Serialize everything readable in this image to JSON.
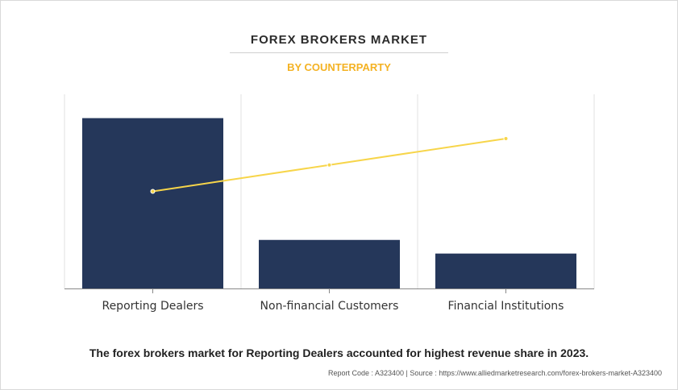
{
  "chart_data": {
    "type": "bar",
    "title": "FOREX BROKERS MARKET",
    "subtitle": "BY COUNTERPARTY",
    "categories": [
      "Reporting Dealers",
      "Non-financial Customers",
      "Financial Institutions"
    ],
    "series": [
      {
        "type": "bar",
        "values": [
          100,
          28.5,
          20.5
        ]
      },
      {
        "type": "line",
        "values": [
          57,
          72.5,
          88
        ]
      }
    ],
    "ylim": [
      0,
      114
    ],
    "grid": "vertical",
    "legend": "none",
    "colors": {
      "bar": "#25375a",
      "line": "#f7d54a",
      "grid": "#e0e0e0",
      "axis": "#888888"
    }
  },
  "caption": "The forex brokers market for Reporting Dealers accounted for highest revenue share in 2023.",
  "footer": "Report Code : A323400  |  Source : https://www.alliedmarketresearch.com/forex-brokers-market-A323400"
}
